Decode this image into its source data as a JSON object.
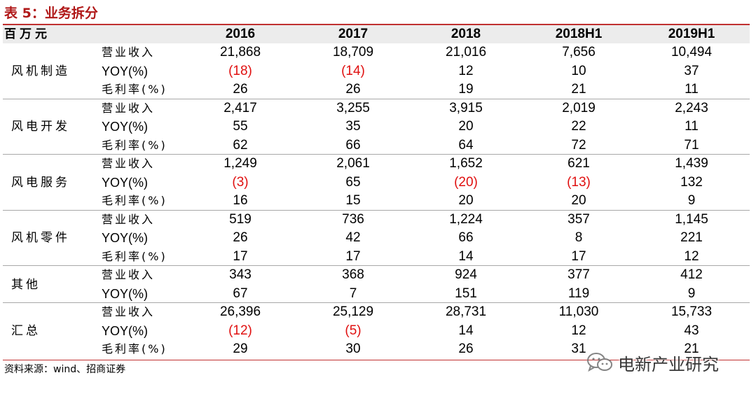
{
  "title": "表 5：业务拆分",
  "header": {
    "unit": "百万元",
    "years": [
      "2016",
      "2017",
      "2018",
      "2018H1",
      "2019H1"
    ]
  },
  "groups": [
    {
      "segment": "风机制造",
      "rows": [
        {
          "metric": "营业收入",
          "values": [
            "21,868",
            "18,709",
            "21,016",
            "7,656",
            "10,494"
          ]
        },
        {
          "metric": "YOY(%)",
          "values": [
            "(18)",
            "(14)",
            "12",
            "10",
            "37"
          ]
        },
        {
          "metric": "毛利率(%)",
          "values": [
            "26",
            "26",
            "19",
            "21",
            "11"
          ]
        }
      ]
    },
    {
      "segment": "风电开发",
      "rows": [
        {
          "metric": "营业收入",
          "values": [
            "2,417",
            "3,255",
            "3,915",
            "2,019",
            "2,243"
          ]
        },
        {
          "metric": "YOY(%)",
          "values": [
            "55",
            "35",
            "20",
            "22",
            "11"
          ]
        },
        {
          "metric": "毛利率(%)",
          "values": [
            "62",
            "66",
            "64",
            "72",
            "71"
          ]
        }
      ]
    },
    {
      "segment": "风电服务",
      "rows": [
        {
          "metric": "营业收入",
          "values": [
            "1,249",
            "2,061",
            "1,652",
            "621",
            "1,439"
          ]
        },
        {
          "metric": "YOY(%)",
          "values": [
            "(3)",
            "65",
            "(20)",
            "(13)",
            "132"
          ]
        },
        {
          "metric": "毛利率(%)",
          "values": [
            "16",
            "15",
            "20",
            "20",
            "9"
          ]
        }
      ]
    },
    {
      "segment": "风机零件",
      "rows": [
        {
          "metric": "营业收入",
          "values": [
            "519",
            "736",
            "1,224",
            "357",
            "1,145"
          ]
        },
        {
          "metric": "YOY(%)",
          "values": [
            "26",
            "42",
            "66",
            "8",
            "221"
          ]
        },
        {
          "metric": "毛利率(%)",
          "values": [
            "17",
            "17",
            "14",
            "17",
            "12"
          ]
        }
      ]
    },
    {
      "segment": "其他",
      "rows": [
        {
          "metric": "营业收入",
          "values": [
            "343",
            "368",
            "924",
            "377",
            "412"
          ]
        },
        {
          "metric": "YOY(%)",
          "values": [
            "67",
            "7",
            "151",
            "119",
            "9"
          ]
        }
      ]
    },
    {
      "segment": "汇总",
      "rows": [
        {
          "metric": "营业收入",
          "values": [
            "26,396",
            "25,129",
            "28,731",
            "11,030",
            "15,733"
          ]
        },
        {
          "metric": "YOY(%)",
          "values": [
            "(12)",
            "(5)",
            "14",
            "12",
            "43"
          ]
        },
        {
          "metric": "毛利率(%)",
          "values": [
            "29",
            "30",
            "26",
            "31",
            "21"
          ]
        }
      ]
    }
  ],
  "source": "资料来源：wind、招商证券",
  "watermark": {
    "icon": "wechat-icon",
    "text": "电新产业研究"
  },
  "colors": {
    "title": "#b01818",
    "rule": "#c03030",
    "header_bg": "#ececec",
    "negative": "#e01010"
  }
}
